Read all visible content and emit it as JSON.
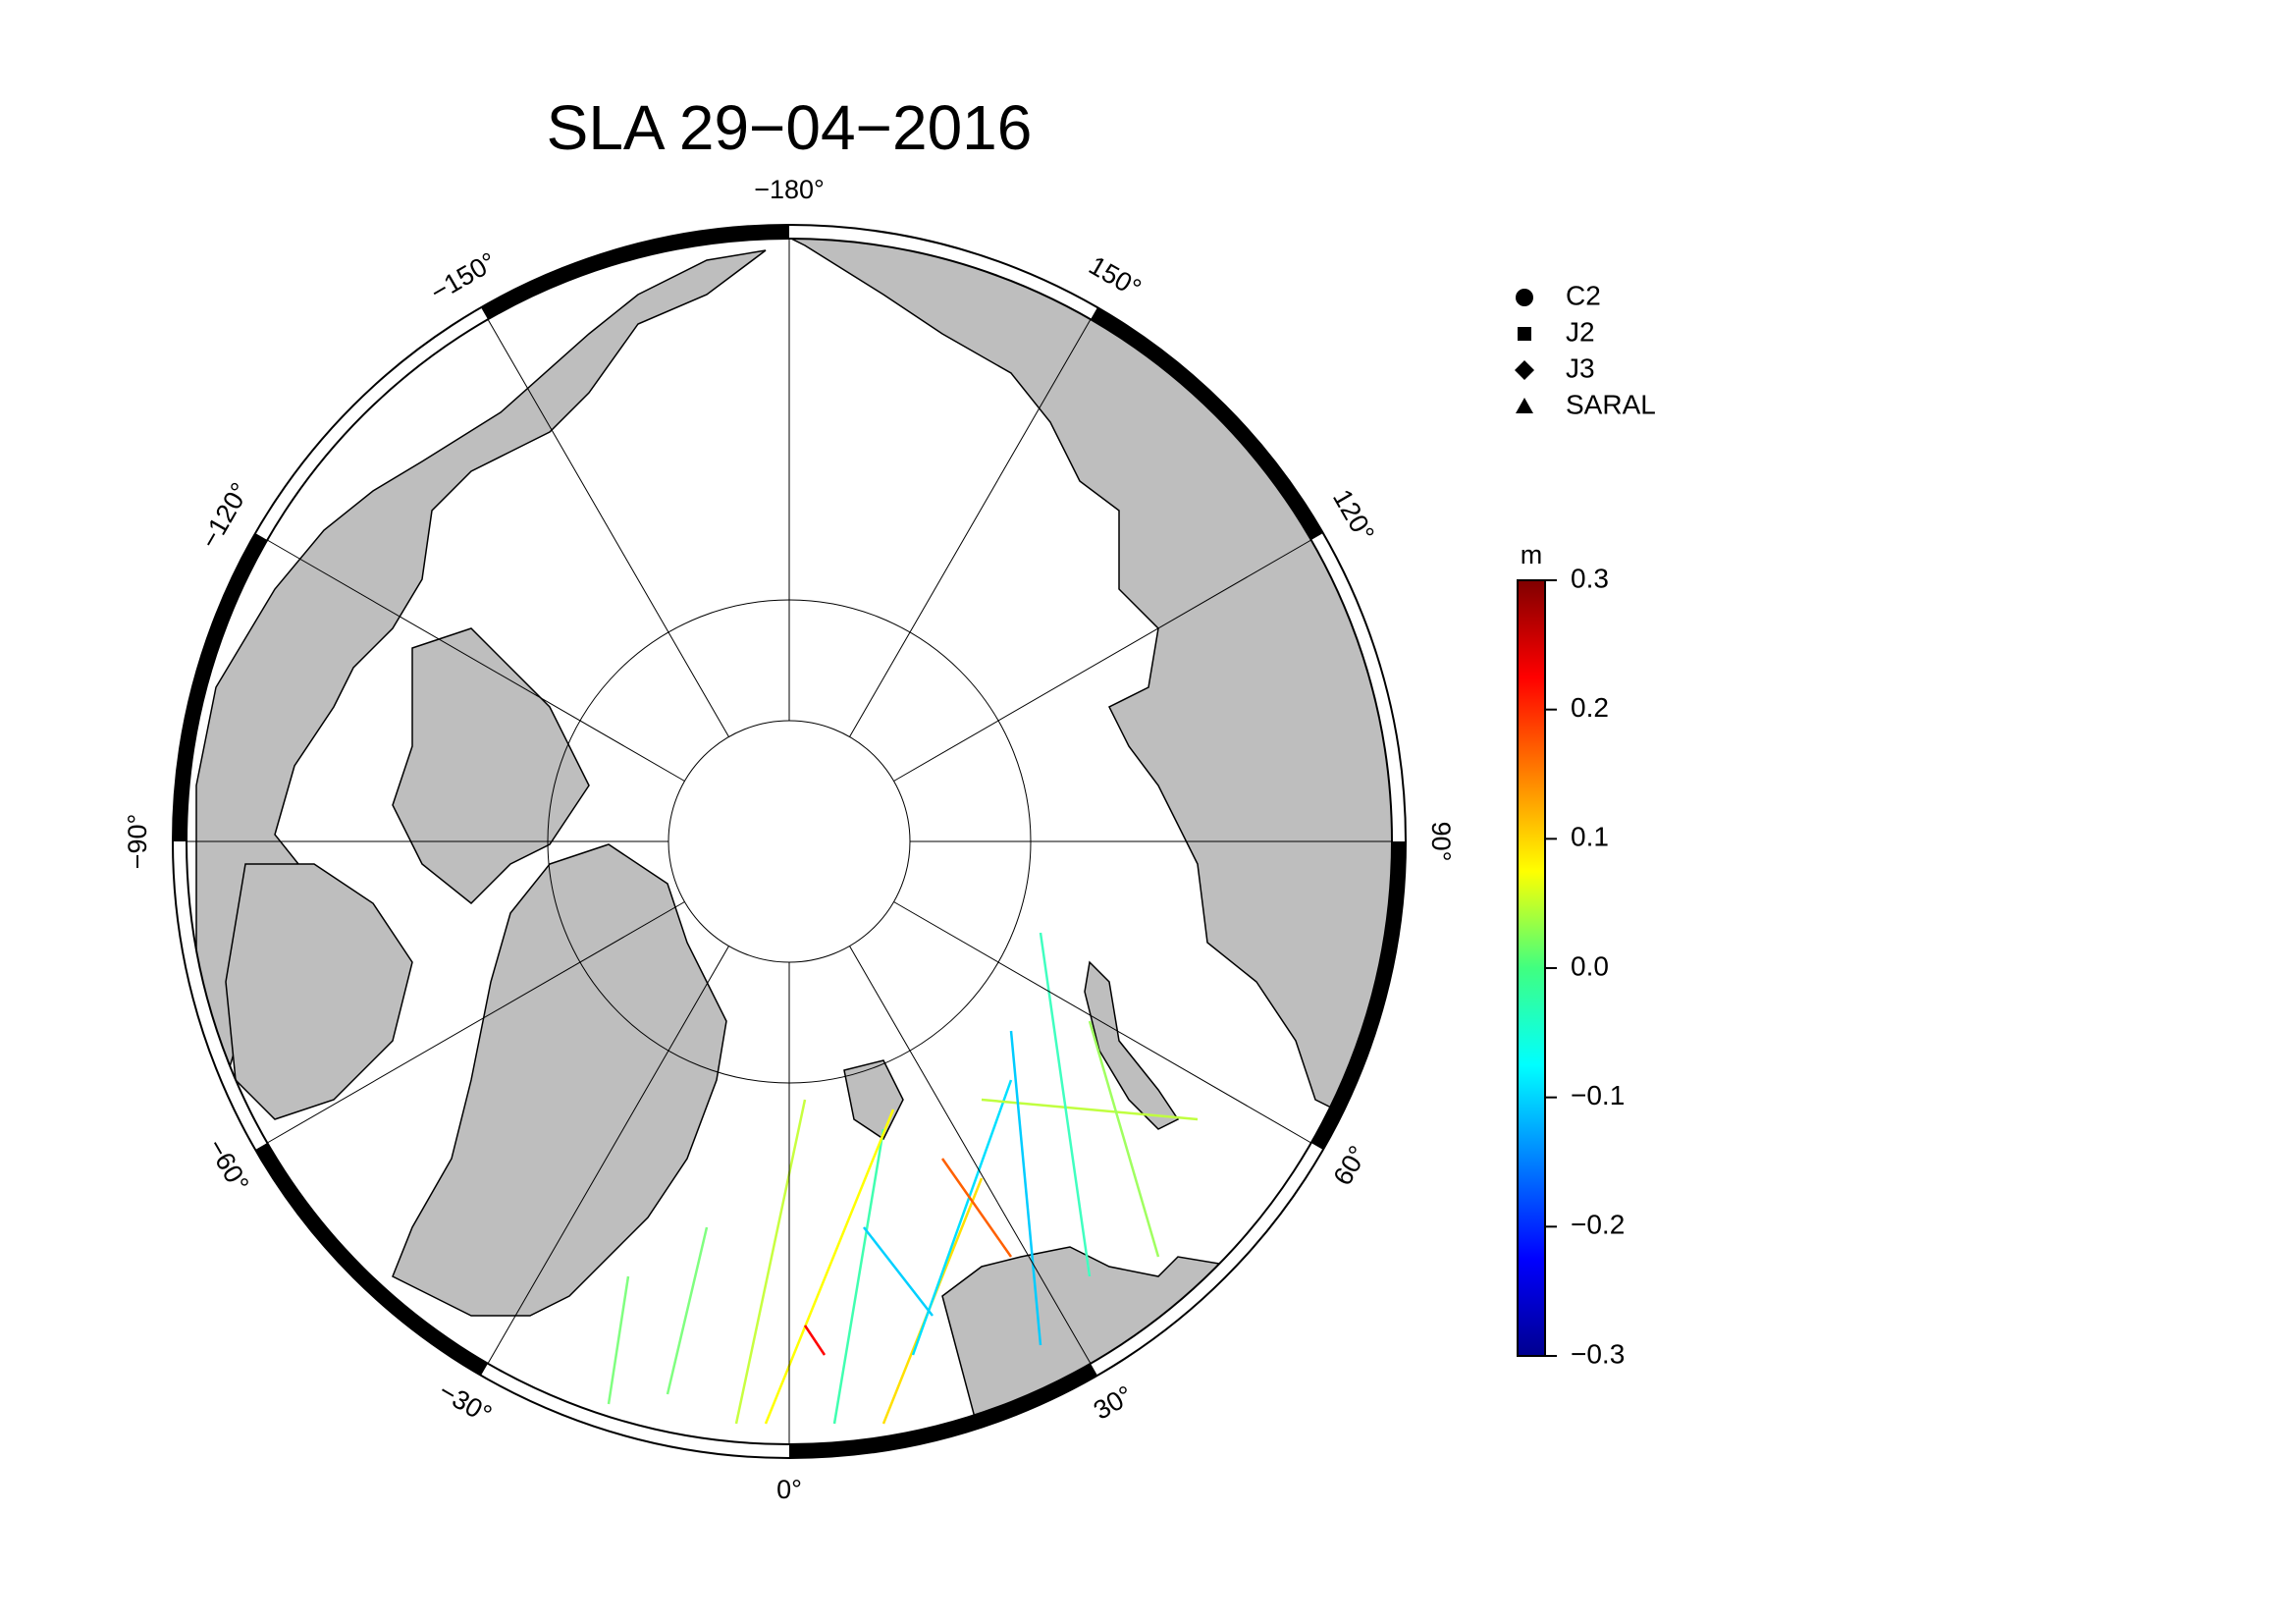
{
  "title": "SLA 29−04−2016",
  "longitude_labels": [
    {
      "value": -180,
      "label": "−180°"
    },
    {
      "value": -150,
      "label": "−150°"
    },
    {
      "value": -120,
      "label": "−120°"
    },
    {
      "value": -90,
      "label": "−90°"
    },
    {
      "value": -60,
      "label": "−60°"
    },
    {
      "value": -30,
      "label": "−30°"
    },
    {
      "value": 0,
      "label": "0°"
    },
    {
      "value": 30,
      "label": "30°"
    },
    {
      "value": 60,
      "label": "60°"
    },
    {
      "value": 90,
      "label": "90°"
    },
    {
      "value": 120,
      "label": "120°"
    },
    {
      "value": 150,
      "label": "150°"
    }
  ],
  "legend": [
    {
      "name": "C2",
      "marker": "circle"
    },
    {
      "name": "J2",
      "marker": "square"
    },
    {
      "name": "J3",
      "marker": "diamond"
    },
    {
      "name": "SARAL",
      "marker": "triangle"
    }
  ],
  "colorbar": {
    "unit": "m",
    "range": [
      -0.3,
      0.3
    ],
    "ticks": [
      {
        "value": 0.3,
        "label": "0.3"
      },
      {
        "value": 0.2,
        "label": "0.2"
      },
      {
        "value": 0.1,
        "label": "0.1"
      },
      {
        "value": 0,
        "label": "0.0"
      },
      {
        "value": -0.1,
        "label": "−0.1"
      },
      {
        "value": -0.2,
        "label": "−0.2"
      },
      {
        "value": -0.3,
        "label": "−0.3"
      }
    ]
  }
}
